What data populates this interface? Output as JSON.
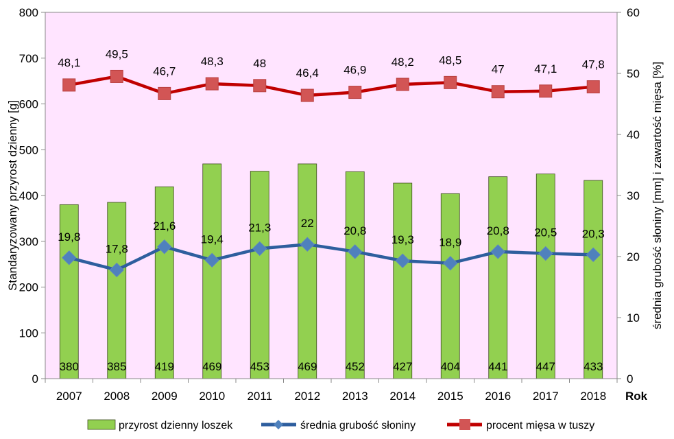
{
  "chart_data": {
    "type": "bar",
    "categories": [
      "2007",
      "2008",
      "2009",
      "2010",
      "2011",
      "2012",
      "2013",
      "2014",
      "2015",
      "2016",
      "2017",
      "2018"
    ],
    "x_axis_title": "Rok",
    "y_left_label": "Standaryzowany przyrost dzienny [g]",
    "y_right_label": "średnia grubość słoniny [mm] i zawartość mięsa [%]",
    "y_left_ticks": [
      "0",
      "100",
      "200",
      "300",
      "400",
      "500",
      "600",
      "700",
      "800"
    ],
    "y_right_ticks": [
      "0",
      "10",
      "20",
      "30",
      "40",
      "50",
      "60"
    ],
    "ylim_left": [
      0,
      800
    ],
    "ylim_right": [
      0,
      60
    ],
    "plot_background": "#FFE4FF",
    "legend_position": "bottom",
    "series": [
      {
        "name": "przyrost dzienny loszek",
        "type": "bar",
        "axis": "left",
        "color": "#92D050",
        "values": [
          380,
          385,
          419,
          469,
          453,
          469,
          452,
          427,
          404,
          441,
          447,
          433
        ],
        "labels": [
          "380",
          "385",
          "419",
          "469",
          "453",
          "469",
          "452",
          "427",
          "404",
          "441",
          "447",
          "433"
        ]
      },
      {
        "name": "średnia grubość słoniny",
        "type": "line",
        "axis": "right",
        "color": "#2E5E9E",
        "marker": "diamond",
        "marker_color": "#4F81BD",
        "values": [
          19.8,
          17.8,
          21.6,
          19.4,
          21.3,
          22,
          20.8,
          19.3,
          18.9,
          20.8,
          20.5,
          20.3
        ],
        "labels": [
          "19,8",
          "17,8",
          "21,6",
          "19,4",
          "21,3",
          "22",
          "20,8",
          "19,3",
          "18,9",
          "20,8",
          "20,5",
          "20,3"
        ]
      },
      {
        "name": "procent mięsa w tuszy",
        "type": "line",
        "axis": "right",
        "color": "#C00000",
        "marker": "square",
        "marker_color": "#D25555",
        "values": [
          48.1,
          49.5,
          46.7,
          48.3,
          48,
          46.4,
          46.9,
          48.2,
          48.5,
          47,
          47.1,
          47.8
        ],
        "labels": [
          "48,1",
          "49,5",
          "46,7",
          "48,3",
          "48",
          "46,4",
          "46,9",
          "48,2",
          "48,5",
          "47",
          "47,1",
          "47,8"
        ]
      }
    ]
  }
}
